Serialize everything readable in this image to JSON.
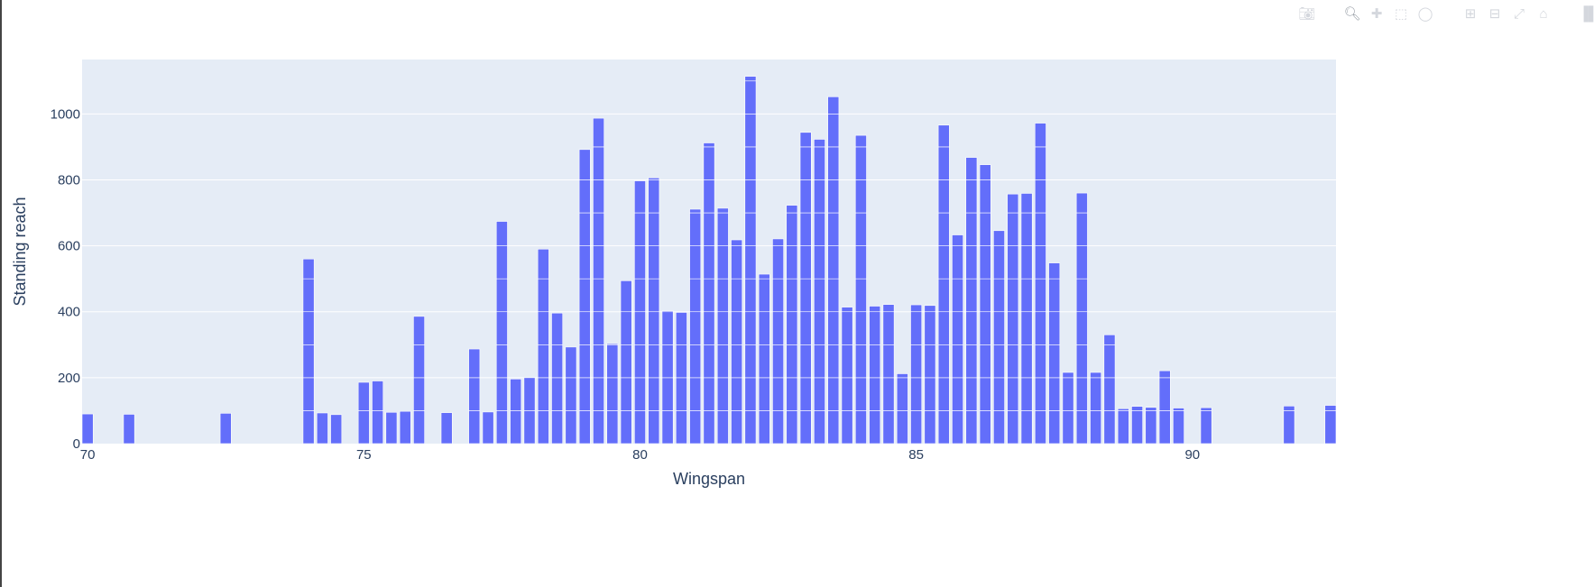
{
  "modebar": {
    "icons": [
      "camera-icon",
      "zoom-icon",
      "pan-icon",
      "box-select-icon",
      "lasso-select-icon",
      "zoom-in-icon",
      "zoom-out-icon",
      "autoscale-icon",
      "reset-axes-icon",
      "plotly-logo-icon"
    ]
  },
  "colors": {
    "bar": "#636efa",
    "plot_bg": "#e5ecf6",
    "grid": "#ffffff",
    "text": "#2a3f5f"
  },
  "chart_data": {
    "type": "bar",
    "barmode": "stack",
    "title": "",
    "xlabel": "Wingspan",
    "ylabel": "Standing reach",
    "xlim": [
      69.9,
      92.6
    ],
    "ylim": [
      0,
      1165
    ],
    "xticks": [
      70,
      75,
      80,
      85,
      90
    ],
    "yticks": [
      0,
      200,
      400,
      600,
      800,
      1000
    ],
    "grid": true,
    "legend": "none",
    "note_segments": "Each bar is a stack of ~100-unit segments separated by thin white lines",
    "x": [
      70,
      70.75,
      72.5,
      74,
      74.25,
      74.5,
      75,
      75.25,
      75.5,
      75.75,
      76,
      76.5,
      77,
      77.25,
      77.5,
      77.75,
      78,
      78.25,
      78.5,
      78.75,
      79,
      79.25,
      79.5,
      79.75,
      80,
      80.25,
      80.5,
      80.75,
      81,
      81.25,
      81.5,
      81.75,
      82,
      82.25,
      82.5,
      82.75,
      83,
      83.25,
      83.5,
      83.75,
      84,
      84.25,
      84.5,
      84.75,
      85,
      85.25,
      85.5,
      85.75,
      86,
      86.25,
      86.5,
      86.75,
      87,
      87.25,
      87.5,
      87.75,
      88,
      88.25,
      88.5,
      88.75,
      89,
      89.25,
      89.5,
      89.75,
      90.25,
      91.75,
      92.5
    ],
    "y": [
      90,
      89,
      92,
      560,
      93,
      88,
      186,
      190,
      95,
      98,
      386,
      94,
      287,
      96,
      674,
      196,
      200,
      590,
      396,
      293,
      892,
      987,
      303,
      494,
      797,
      806,
      403,
      398,
      711,
      912,
      714,
      618,
      1114,
      514,
      621,
      723,
      944,
      923,
      1052,
      414,
      935,
      417,
      422,
      212,
      421,
      419,
      966,
      633,
      868,
      846,
      646,
      757,
      759,
      972,
      548,
      216,
      760,
      216,
      330,
      106,
      113,
      110,
      221,
      108,
      109,
      114,
      116
    ]
  }
}
